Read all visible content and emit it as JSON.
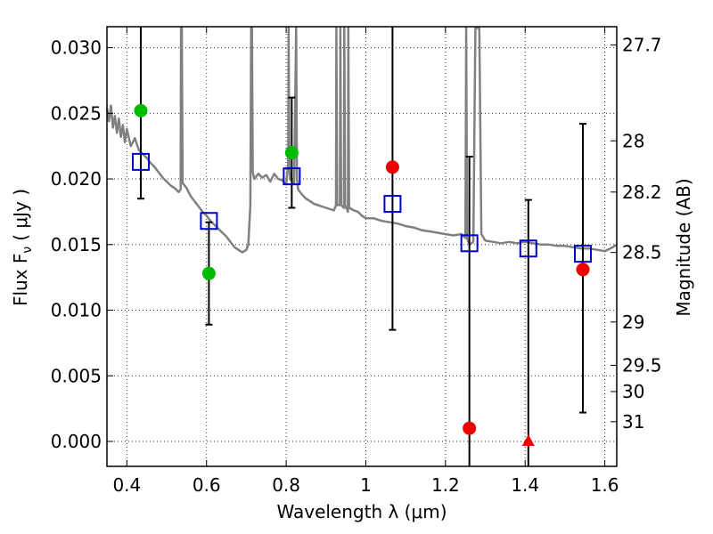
{
  "chart_data": {
    "type": "scatter",
    "xlabel": "Wavelength  λ (μm)",
    "ylabel": "Flux  F",
    "ylabel_sub": "ν",
    "ylabel_unit": "( μJy )",
    "y2label": "Magnitude (AB)",
    "xlim": [
      0.35,
      1.63
    ],
    "ylim": [
      -0.0019,
      0.0316
    ],
    "grid": true,
    "x_ticks": [
      0.4,
      0.6,
      0.8,
      1.0,
      1.2,
      1.4,
      1.6
    ],
    "x_tick_labels": [
      "0.4",
      "0.6",
      "0.8",
      "1",
      "1.2",
      "1.4",
      "1.6"
    ],
    "y_ticks": [
      0.0,
      0.005,
      0.01,
      0.015,
      0.02,
      0.025,
      0.03
    ],
    "y_tick_labels": [
      "0.000",
      "0.005",
      "0.010",
      "0.015",
      "0.020",
      "0.025",
      "0.030"
    ],
    "right_ticks": [
      {
        "label": "27.7",
        "flux": 0.0302
      },
      {
        "label": "28",
        "flux": 0.0229
      },
      {
        "label": "28.2",
        "flux": 0.019
      },
      {
        "label": "28.5",
        "flux": 0.0144
      },
      {
        "label": "29",
        "flux": 0.0091
      },
      {
        "label": "29.5",
        "flux": 0.0058
      },
      {
        "label": "30",
        "flux": 0.0038
      },
      {
        "label": "31",
        "flux": 0.0015
      }
    ],
    "series": [
      {
        "marker": "line",
        "color": "#808080",
        "points": [
          [
            0.35,
            0.0254
          ],
          [
            0.355,
            0.0244
          ],
          [
            0.36,
            0.0256
          ],
          [
            0.365,
            0.0239
          ],
          [
            0.37,
            0.0248
          ],
          [
            0.375,
            0.0235
          ],
          [
            0.38,
            0.0246
          ],
          [
            0.385,
            0.0232
          ],
          [
            0.39,
            0.0241
          ],
          [
            0.395,
            0.0228
          ],
          [
            0.4,
            0.0238
          ],
          [
            0.41,
            0.0225
          ],
          [
            0.42,
            0.0231
          ],
          [
            0.43,
            0.0222
          ],
          [
            0.44,
            0.0219
          ],
          [
            0.45,
            0.0216
          ],
          [
            0.46,
            0.0212
          ],
          [
            0.47,
            0.0209
          ],
          [
            0.48,
            0.0205
          ],
          [
            0.49,
            0.0201
          ],
          [
            0.5,
            0.0198
          ],
          [
            0.51,
            0.0195
          ],
          [
            0.52,
            0.0193
          ],
          [
            0.53,
            0.019
          ],
          [
            0.535,
            0.0192
          ],
          [
            0.536,
            0.0315
          ],
          [
            0.538,
            0.0315
          ],
          [
            0.54,
            0.0197
          ],
          [
            0.55,
            0.0193
          ],
          [
            0.56,
            0.0187
          ],
          [
            0.57,
            0.0183
          ],
          [
            0.58,
            0.0179
          ],
          [
            0.59,
            0.0175
          ],
          [
            0.6,
            0.0172
          ],
          [
            0.61,
            0.0168
          ],
          [
            0.62,
            0.0165
          ],
          [
            0.63,
            0.0162
          ],
          [
            0.64,
            0.0159
          ],
          [
            0.65,
            0.0156
          ],
          [
            0.66,
            0.0152
          ],
          [
            0.67,
            0.0148
          ],
          [
            0.68,
            0.0146
          ],
          [
            0.69,
            0.0144
          ],
          [
            0.7,
            0.0146
          ],
          [
            0.705,
            0.015
          ],
          [
            0.71,
            0.018
          ],
          [
            0.712,
            0.0315
          ],
          [
            0.714,
            0.0315
          ],
          [
            0.716,
            0.0205
          ],
          [
            0.72,
            0.02
          ],
          [
            0.73,
            0.0204
          ],
          [
            0.74,
            0.0201
          ],
          [
            0.75,
            0.0203
          ],
          [
            0.76,
            0.0198
          ],
          [
            0.77,
            0.0204
          ],
          [
            0.78,
            0.02
          ],
          [
            0.79,
            0.0199
          ],
          [
            0.8,
            0.0196
          ],
          [
            0.805,
            0.021
          ],
          [
            0.806,
            0.0315
          ],
          [
            0.808,
            0.021
          ],
          [
            0.81,
            0.02
          ],
          [
            0.82,
            0.0196
          ],
          [
            0.825,
            0.0315
          ],
          [
            0.827,
            0.02
          ],
          [
            0.83,
            0.0192
          ],
          [
            0.84,
            0.0188
          ],
          [
            0.85,
            0.0185
          ],
          [
            0.86,
            0.0183
          ],
          [
            0.87,
            0.0181
          ],
          [
            0.88,
            0.018
          ],
          [
            0.89,
            0.0179
          ],
          [
            0.9,
            0.0178
          ],
          [
            0.91,
            0.0177
          ],
          [
            0.92,
            0.0176
          ],
          [
            0.925,
            0.018
          ],
          [
            0.926,
            0.0315
          ],
          [
            0.928,
            0.018
          ],
          [
            0.935,
            0.018
          ],
          [
            0.936,
            0.0315
          ],
          [
            0.938,
            0.018
          ],
          [
            0.945,
            0.0178
          ],
          [
            0.946,
            0.0315
          ],
          [
            0.948,
            0.018
          ],
          [
            0.955,
            0.0175
          ],
          [
            0.956,
            0.0315
          ],
          [
            0.958,
            0.0178
          ],
          [
            0.97,
            0.0176
          ],
          [
            0.98,
            0.0175
          ],
          [
            0.99,
            0.0172
          ],
          [
            1.0,
            0.017
          ],
          [
            1.02,
            0.017
          ],
          [
            1.04,
            0.0168
          ],
          [
            1.06,
            0.0167
          ],
          [
            1.08,
            0.0166
          ],
          [
            1.1,
            0.0164
          ],
          [
            1.12,
            0.0163
          ],
          [
            1.14,
            0.0161
          ],
          [
            1.16,
            0.016
          ],
          [
            1.18,
            0.0159
          ],
          [
            1.2,
            0.0158
          ],
          [
            1.22,
            0.0157
          ],
          [
            1.24,
            0.0158
          ],
          [
            1.25,
            0.0155
          ],
          [
            1.252,
            0.0315
          ],
          [
            1.254,
            0.0155
          ],
          [
            1.26,
            0.015
          ],
          [
            1.27,
            0.0152
          ],
          [
            1.275,
            0.0315
          ],
          [
            1.285,
            0.0315
          ],
          [
            1.29,
            0.0158
          ],
          [
            1.3,
            0.0153
          ],
          [
            1.32,
            0.0152
          ],
          [
            1.34,
            0.0151
          ],
          [
            1.36,
            0.0152
          ],
          [
            1.38,
            0.0151
          ],
          [
            1.4,
            0.0152
          ],
          [
            1.42,
            0.0151
          ],
          [
            1.44,
            0.015
          ],
          [
            1.46,
            0.015
          ],
          [
            1.48,
            0.0149
          ],
          [
            1.5,
            0.0149
          ],
          [
            1.52,
            0.0148
          ],
          [
            1.54,
            0.0147
          ],
          [
            1.56,
            0.0147
          ],
          [
            1.58,
            0.0146
          ],
          [
            1.6,
            0.0145
          ],
          [
            1.62,
            0.0148
          ],
          [
            1.63,
            0.015
          ]
        ]
      },
      {
        "marker": "open-square",
        "color": "#0000cc",
        "points": [
          {
            "x": 0.435,
            "y": 0.0213
          },
          {
            "x": 0.606,
            "y": 0.0168
          },
          {
            "x": 0.814,
            "y": 0.0202
          },
          {
            "x": 1.067,
            "y": 0.0181
          },
          {
            "x": 1.26,
            "y": 0.0151
          },
          {
            "x": 1.408,
            "y": 0.0147
          },
          {
            "x": 1.545,
            "y": 0.0143
          }
        ]
      },
      {
        "marker": "circle",
        "color": "#00bb00",
        "points": [
          {
            "x": 0.435,
            "y": 0.0252
          },
          {
            "x": 0.606,
            "y": 0.0128
          },
          {
            "x": 0.814,
            "y": 0.022
          }
        ]
      },
      {
        "marker": "circle",
        "color": "#ee0000",
        "points": [
          {
            "x": 1.067,
            "y": 0.0209
          },
          {
            "x": 1.26,
            "y": 0.001
          },
          {
            "x": 1.545,
            "y": 0.0131
          }
        ]
      },
      {
        "marker": "triangle",
        "color": "#ee0000",
        "points": [
          {
            "x": 1.408,
            "y": 0.0
          }
        ]
      }
    ],
    "error_bars": [
      {
        "x": 0.435,
        "low": 0.0185,
        "high": 0.0316,
        "cap_high": false
      },
      {
        "x": 0.606,
        "low": 0.0089,
        "high": 0.0167,
        "cap_high": true
      },
      {
        "x": 0.814,
        "low": 0.0178,
        "high": 0.0262,
        "cap_high": true
      },
      {
        "x": 1.067,
        "low": 0.0085,
        "high": 0.0316,
        "cap_high": false
      },
      {
        "x": 1.26,
        "low": -0.0019,
        "high": 0.0217,
        "cap_high": true
      },
      {
        "x": 1.408,
        "low": -0.0019,
        "high": 0.0184,
        "cap_high": true
      },
      {
        "x": 1.545,
        "low": 0.0022,
        "high": 0.0242,
        "cap_high": true
      }
    ]
  }
}
